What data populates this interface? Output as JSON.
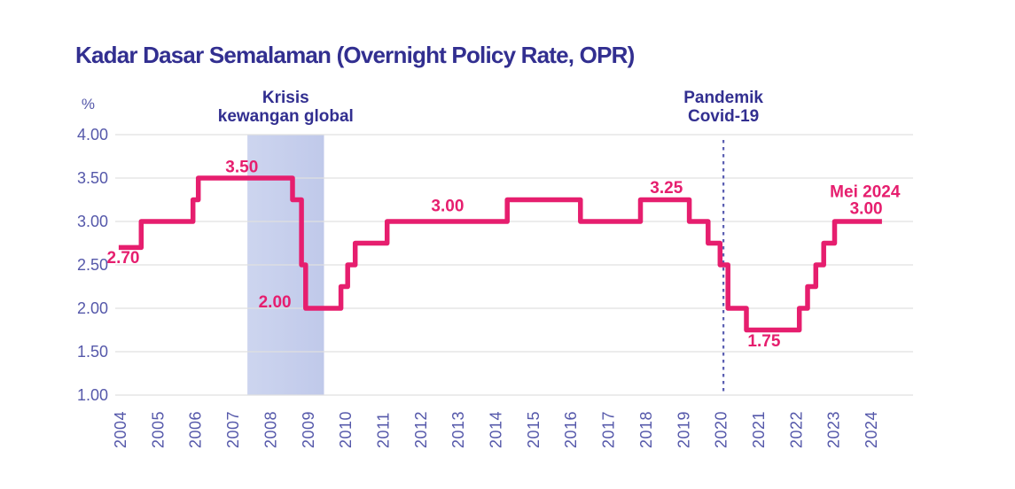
{
  "chart_data": {
    "type": "line",
    "line_style": "step",
    "title": "Kadar Dasar Semalaman (Overnight Policy Rate, OPR)",
    "unit_label": "%",
    "grid": true,
    "xlim": [
      2004,
      2025.1
    ],
    "ylim": [
      1.0,
      4.0
    ],
    "x_ticks": [
      "2004",
      "2005",
      "2006",
      "2007",
      "2008",
      "2009",
      "2010",
      "2011",
      "2012",
      "2013",
      "2014",
      "2015",
      "2016",
      "2017",
      "2018",
      "2019",
      "2020",
      "2021",
      "2022",
      "2023",
      "2024"
    ],
    "y_ticks": [
      "4.00",
      "3.50",
      "3.00",
      "2.50",
      "2.00",
      "1.50",
      "1.00"
    ],
    "series": [
      {
        "name": "OPR",
        "color": "#E61E6E",
        "points": [
          [
            2003.95,
            2.7
          ],
          [
            2004.55,
            3.0
          ],
          [
            2005.93,
            3.25
          ],
          [
            2006.07,
            3.5
          ],
          [
            2008.58,
            3.25
          ],
          [
            2008.82,
            2.5
          ],
          [
            2008.93,
            2.0
          ],
          [
            2009.87,
            2.25
          ],
          [
            2010.05,
            2.5
          ],
          [
            2010.25,
            2.75
          ],
          [
            2011.1,
            3.0
          ],
          [
            2014.3,
            3.25
          ],
          [
            2016.25,
            3.0
          ],
          [
            2017.85,
            3.25
          ],
          [
            2019.15,
            3.0
          ],
          [
            2019.65,
            2.75
          ],
          [
            2019.97,
            2.5
          ],
          [
            2020.18,
            2.0
          ],
          [
            2020.67,
            1.75
          ],
          [
            2022.08,
            2.0
          ],
          [
            2022.3,
            2.25
          ],
          [
            2022.52,
            2.5
          ],
          [
            2022.73,
            2.75
          ],
          [
            2023.02,
            3.0
          ]
        ],
        "end_year": 2024.28
      }
    ],
    "shaded_region": {
      "label_lines": [
        "Krisis",
        "kewangan global"
      ],
      "from_year": 2007.38,
      "to_year": 2009.42,
      "color_left": "#CDD5EF",
      "color_right": "#C0C9EA"
    },
    "event_line": {
      "label_lines": [
        "Pandemik",
        "Covid-19"
      ],
      "year": 2020.06,
      "style": "dashed",
      "color": "#5B5FB2"
    },
    "data_labels": [
      {
        "text": "2.70",
        "year": 2004.07,
        "rate": 2.58
      },
      {
        "text": "3.50",
        "year": 2007.23,
        "rate": 3.63
      },
      {
        "text": "2.00",
        "year": 2008.11,
        "rate": 2.07
      },
      {
        "text": "3.00",
        "year": 2012.71,
        "rate": 3.18
      },
      {
        "text": "3.25",
        "year": 2018.54,
        "rate": 3.39
      },
      {
        "text": "1.75",
        "year": 2021.14,
        "rate": 1.62
      },
      {
        "text": "Mei 2024",
        "year": 2023.83,
        "rate": 3.34
      },
      {
        "text": "3.00",
        "year": 2023.86,
        "rate": 3.15
      }
    ],
    "colors": {
      "title": "#322F90",
      "axis_labels": "#5558AA",
      "gridline": "#E0E0E0",
      "line": "#E61E6E",
      "annotation": "#322F90",
      "data_label": "#E61E6E"
    },
    "legend": "none"
  }
}
